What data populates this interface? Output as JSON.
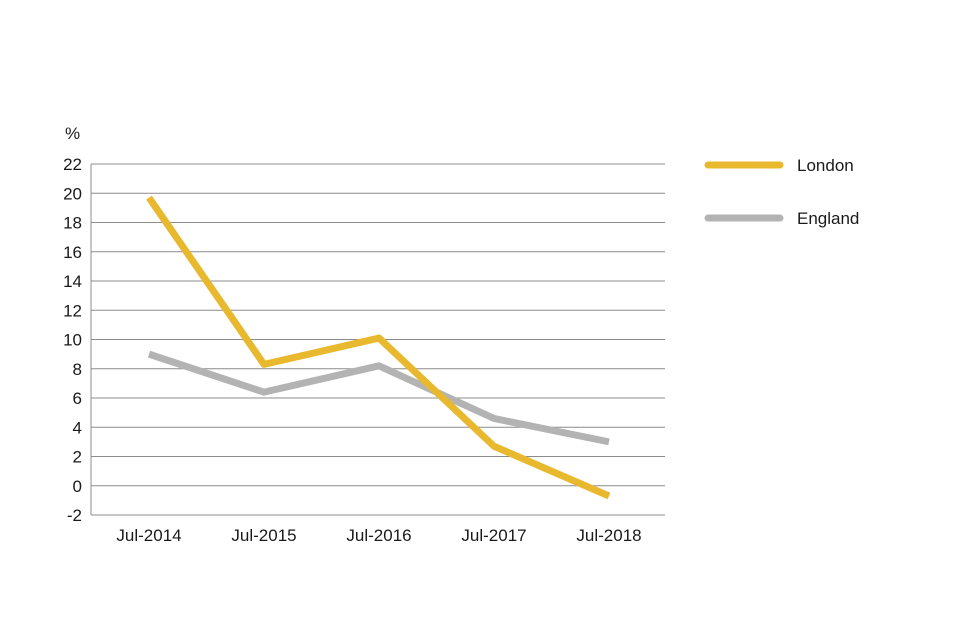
{
  "chart_data": {
    "type": "line",
    "ylabel": "%",
    "categories": [
      "Jul-2014",
      "Jul-2015",
      "Jul-2016",
      "Jul-2017",
      "Jul-2018"
    ],
    "series": [
      {
        "name": "London",
        "color": "#E8B92E",
        "values": [
          19.7,
          8.3,
          10.1,
          2.7,
          -0.7
        ]
      },
      {
        "name": "England",
        "color": "#B3B3B3",
        "values": [
          9.0,
          6.4,
          8.2,
          4.6,
          3.0
        ]
      }
    ],
    "ylim": [
      -2,
      22
    ],
    "yticks": [
      "22",
      "20",
      "18",
      "16",
      "14",
      "12",
      "10",
      "8",
      "6",
      "4",
      "2",
      "0",
      "-2"
    ],
    "grid": true,
    "legend_position": "right"
  }
}
